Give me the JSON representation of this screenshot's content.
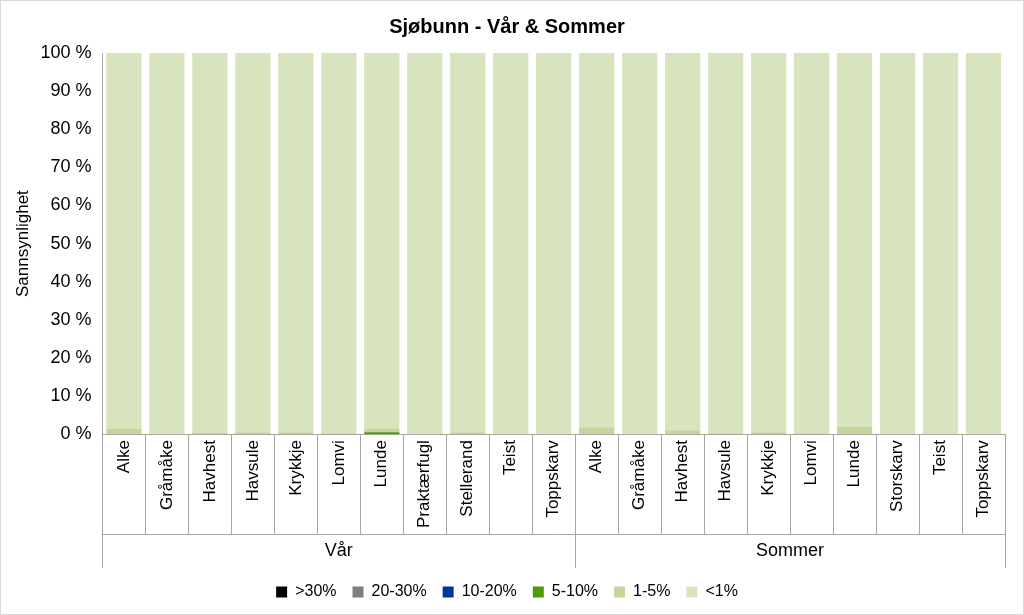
{
  "chart_data": {
    "type": "bar",
    "title": "Sjøbunn - Vår & Sommer",
    "y_label": "Sannsynlighet",
    "groups": [
      {
        "name": "Vår",
        "categories": [
          "Alke",
          "Gråmåke",
          "Havhest",
          "Havsule",
          "Krykkje",
          "Lomvi",
          "Lunde",
          "Praktærfugl",
          "Stellerand",
          "Teist",
          "Toppskarv"
        ]
      },
      {
        "name": "Sommer",
        "categories": [
          "Alke",
          "Gråmåke",
          "Havhest",
          "Havsule",
          "Krykkje",
          "Lomvi",
          "Lunde",
          "Storskarv",
          "Teist",
          "Toppskarv"
        ]
      }
    ],
    "stacked": true,
    "grid": false,
    "legend": "bottom",
    "series": [
      {
        "name": ">30%",
        "color": "#000000",
        "values": [
          0,
          0,
          0,
          0,
          0,
          0,
          0,
          0,
          0,
          0,
          0,
          0,
          0,
          0,
          0,
          0,
          0,
          0,
          0,
          0,
          0
        ]
      },
      {
        "name": "20-30%",
        "color": "#7f7f7f",
        "values": [
          0,
          0,
          0,
          0,
          0,
          0,
          0,
          0,
          0,
          0,
          0,
          0,
          0,
          0,
          0,
          0,
          0,
          0,
          0,
          0,
          0
        ]
      },
      {
        "name": "10-20%",
        "color": "#0033a0",
        "values": [
          0,
          0,
          0,
          0,
          0,
          0,
          0,
          0,
          0,
          0,
          0,
          0,
          0,
          0,
          0,
          0,
          0,
          0,
          0,
          0,
          0
        ]
      },
      {
        "name": "5-10%",
        "color": "#4e9a06",
        "values": [
          0,
          0,
          0,
          0,
          0,
          0,
          0.5,
          0,
          0,
          0,
          0,
          0,
          0,
          0,
          0,
          0,
          0,
          0,
          0,
          0,
          0
        ]
      },
      {
        "name": "1-5%",
        "color": "#c3d69b",
        "values": [
          1.5,
          0,
          0.3,
          0.5,
          0.5,
          0.2,
          1.0,
          0,
          0.5,
          0,
          0,
          1.8,
          0,
          1.0,
          0.2,
          0.5,
          0.2,
          2.0,
          0,
          0,
          0
        ]
      },
      {
        "name": "<1%",
        "color": "#d7e4bd",
        "values": [
          98.5,
          100,
          99.7,
          99.5,
          99.5,
          99.8,
          98.5,
          100,
          99.5,
          100,
          100,
          98.2,
          100,
          99.0,
          99.8,
          99.5,
          99.8,
          98.0,
          100,
          100,
          100
        ]
      }
    ],
    "ylim": [
      0,
      100
    ],
    "yticks": [
      {
        "value": 0,
        "label": "0 %"
      },
      {
        "value": 10,
        "label": "10 %"
      },
      {
        "value": 20,
        "label": "20 %"
      },
      {
        "value": 30,
        "label": "30 %"
      },
      {
        "value": 40,
        "label": "40 %"
      },
      {
        "value": 50,
        "label": "50 %"
      },
      {
        "value": 60,
        "label": "60 %"
      },
      {
        "value": 70,
        "label": "70 %"
      },
      {
        "value": 80,
        "label": "80 %"
      },
      {
        "value": 90,
        "label": "90 %"
      },
      {
        "value": 100,
        "label": "100 %"
      }
    ]
  }
}
